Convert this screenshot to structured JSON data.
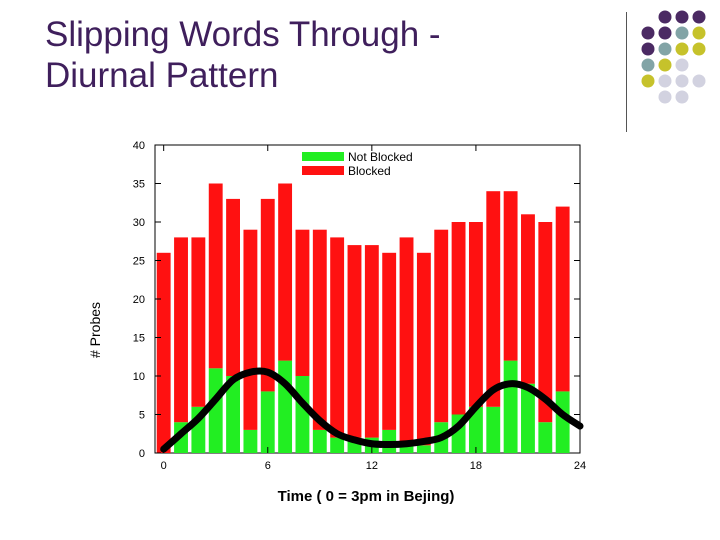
{
  "slide": {
    "title_line1": "Slipping Words Through -",
    "title_line2": "Diurnal Pattern",
    "title_color": "#3f1f5c"
  },
  "decor": {
    "dot_colors": [
      "#4b2a63",
      "#82a4a6",
      "#c6c22b",
      "#d2d2e0"
    ]
  },
  "chart_data": {
    "type": "bar",
    "stacked": true,
    "title": "",
    "xlabel": "Time ( 0 = 3pm in Bejing)",
    "ylabel": "# Probes",
    "ylim": [
      0,
      40
    ],
    "xlim": [
      -0.5,
      24
    ],
    "yticks": [
      0,
      5,
      10,
      15,
      20,
      25,
      30,
      35,
      40
    ],
    "xticks": [
      0,
      6,
      12,
      18,
      24
    ],
    "x": [
      0,
      1,
      2,
      3,
      4,
      5,
      6,
      7,
      8,
      9,
      10,
      11,
      12,
      13,
      14,
      15,
      16,
      17,
      18,
      19,
      20,
      21,
      22,
      23
    ],
    "legend_position": "top",
    "series": [
      {
        "name": "Not Blocked",
        "color": "#22ee22",
        "values": [
          0,
          4,
          6,
          11,
          10,
          3,
          8,
          12,
          10,
          3,
          2,
          2,
          2,
          3,
          1,
          1,
          4,
          5,
          6,
          6,
          12,
          9,
          4,
          8
        ]
      },
      {
        "name": "Blocked",
        "color": "#ff1111",
        "values": [
          26,
          24,
          22,
          24,
          23,
          26,
          25,
          23,
          19,
          26,
          26,
          25,
          25,
          23,
          27,
          25,
          25,
          25,
          24,
          28,
          22,
          22,
          26,
          24
        ]
      }
    ],
    "trend_curve": {
      "color": "#000000",
      "x": [
        0,
        1,
        2,
        3,
        4,
        5,
        6,
        7,
        8,
        9,
        10,
        11,
        12,
        13,
        14,
        15,
        16,
        17,
        18,
        19,
        20,
        21,
        22,
        23,
        24
      ],
      "y": [
        0.5,
        2.5,
        4.5,
        7,
        9.5,
        10.5,
        10.5,
        9,
        6.5,
        4.2,
        2.5,
        1.7,
        1.2,
        1.1,
        1.2,
        1.5,
        2,
        3.5,
        6,
        8.2,
        9,
        8.5,
        7,
        5,
        3.5
      ]
    }
  }
}
